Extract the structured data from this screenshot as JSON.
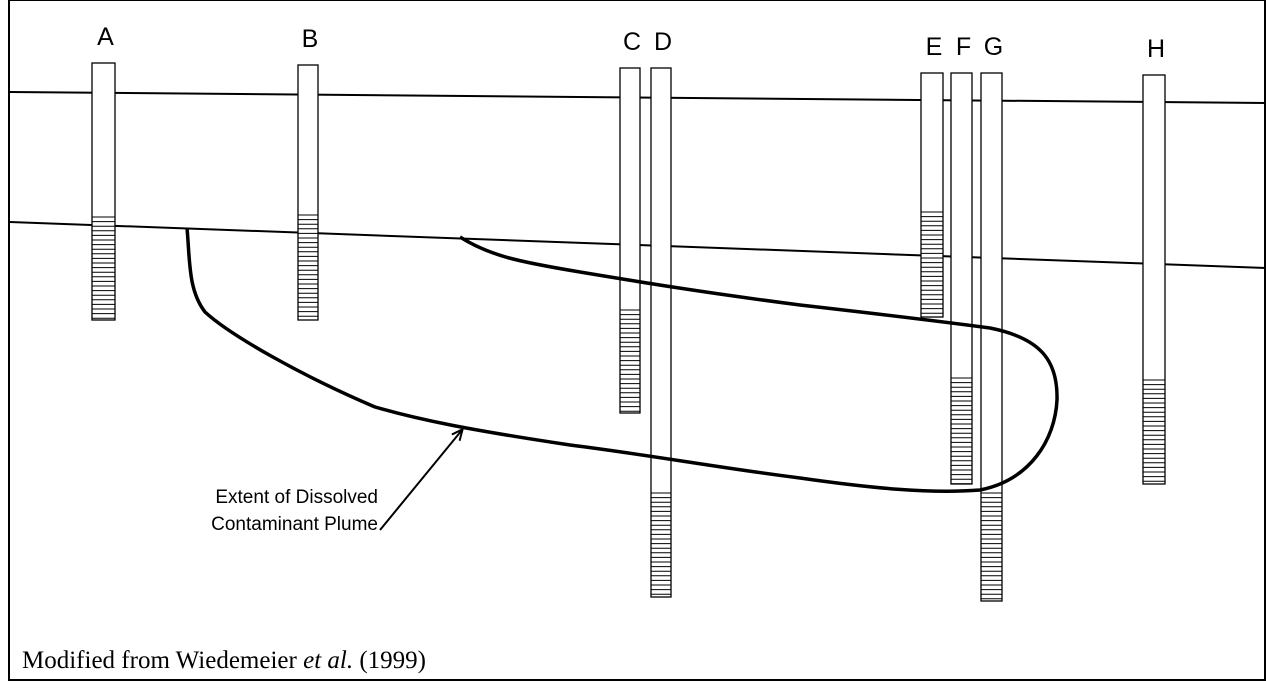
{
  "wells": [
    {
      "label": "A"
    },
    {
      "label": "B"
    },
    {
      "label": "C"
    },
    {
      "label": "D"
    },
    {
      "label": "E"
    },
    {
      "label": "F"
    },
    {
      "label": "G"
    },
    {
      "label": "H"
    }
  ],
  "plume_label": {
    "lines": [
      "Extent of Dissolved",
      "Contaminant Plume"
    ]
  },
  "caption": {
    "prefix": "Modified from Wiedemeier",
    "italic": "et al.",
    "suffix": "(1999)"
  }
}
